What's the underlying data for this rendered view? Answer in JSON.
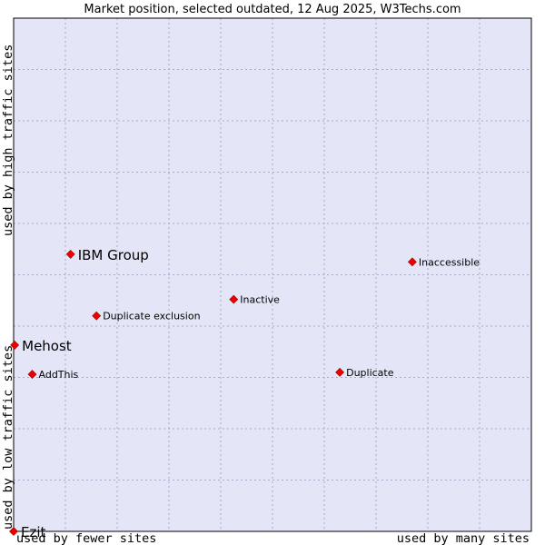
{
  "title": "Market position, selected outdated, 12 Aug 2025, W3Techs.com",
  "colors": {
    "plot_bg": "#e4e6f8",
    "grid": "#a9a9c9",
    "border": "#000000",
    "point": "#ee0000"
  },
  "chart_data": {
    "type": "scatter",
    "title": "Market position, selected outdated, 12 Aug 2025, W3Techs.com",
    "xlabel_low": "used by fewer sites",
    "xlabel_high": "used by many sites",
    "ylabel_low": "used by low traffic sites",
    "ylabel_high": "used by high traffic sites",
    "xlim": [
      0,
      100
    ],
    "ylim": [
      0,
      100
    ],
    "grid": true,
    "grid_divisions": {
      "x": 10,
      "y": 10
    },
    "points": [
      {
        "label": "IBM Group",
        "x": 11,
        "y": 54,
        "emphasis": true
      },
      {
        "label": "Inaccessible",
        "x": 77,
        "y": 52.5,
        "emphasis": false
      },
      {
        "label": "Inactive",
        "x": 42.5,
        "y": 45.2,
        "emphasis": false
      },
      {
        "label": "Duplicate exclusion",
        "x": 16,
        "y": 42,
        "emphasis": false
      },
      {
        "label": "Mehost",
        "x": 0.2,
        "y": 36.3,
        "emphasis": true
      },
      {
        "label": "AddThis",
        "x": 3.6,
        "y": 30.6,
        "emphasis": false
      },
      {
        "label": "Duplicate",
        "x": 63,
        "y": 31,
        "emphasis": false
      },
      {
        "label": "Ezit",
        "x": 0,
        "y": 0,
        "emphasis": true
      }
    ]
  }
}
